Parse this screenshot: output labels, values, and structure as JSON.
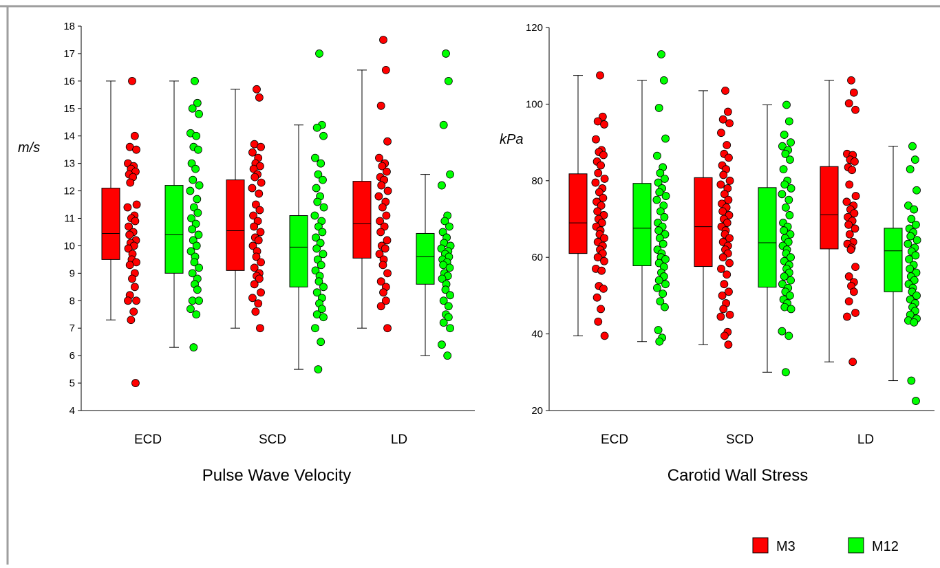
{
  "colors": {
    "m3": "#ff0000",
    "m12": "#00ff00",
    "frame": "#9e9e9e"
  },
  "legend": [
    {
      "key": "m3",
      "label": "M3",
      "color": "#ff0000"
    },
    {
      "key": "m12",
      "label": "M12",
      "color": "#00ff00"
    }
  ],
  "chart_data": [
    {
      "type": "box",
      "title": "",
      "xlabel": "Pulse Wave Velocity",
      "ylabel": "m/s",
      "ylim": [
        4,
        18
      ],
      "yticks": [
        "4",
        "5",
        "6",
        "7",
        "8",
        "9",
        "10",
        "11",
        "12",
        "13",
        "14",
        "15",
        "16",
        "17",
        "18"
      ],
      "categories": [
        "ECD",
        "SCD",
        "LD"
      ],
      "series": [
        {
          "name": "M3",
          "color": "#ff0000",
          "boxes": [
            {
              "whisker_low": 7.3,
              "q1": 9.5,
              "median": 10.45,
              "q3": 12.1,
              "whisker_high": 16.0
            },
            {
              "whisker_low": 7.0,
              "q1": 9.1,
              "median": 10.55,
              "q3": 12.4,
              "whisker_high": 15.7
            },
            {
              "whisker_low": 7.0,
              "q1": 9.55,
              "median": 10.8,
              "q3": 12.35,
              "whisker_high": 16.4
            }
          ],
          "points": [
            [
              16.0,
              14.0,
              13.6,
              13.5,
              13.0,
              12.9,
              12.8,
              12.7,
              12.6,
              12.5,
              12.3,
              11.5,
              11.4,
              11.1,
              11.0,
              10.9,
              10.7,
              10.5,
              10.4,
              10.2,
              10.1,
              10.0,
              9.9,
              9.7,
              9.5,
              9.4,
              9.3,
              9.0,
              8.8,
              8.5,
              8.2,
              8.0,
              8.0,
              7.6,
              7.3,
              5.0
            ],
            [
              15.7,
              15.4,
              13.7,
              13.6,
              13.4,
              13.2,
              13.0,
              12.9,
              12.8,
              12.6,
              12.5,
              12.3,
              12.1,
              11.9,
              11.5,
              11.3,
              11.1,
              10.9,
              10.7,
              10.5,
              10.3,
              10.2,
              10.0,
              9.8,
              9.6,
              9.4,
              9.2,
              9.0,
              8.9,
              8.8,
              8.6,
              8.3,
              8.1,
              7.9,
              7.6,
              7.0
            ],
            [
              17.5,
              16.4,
              15.1,
              13.8,
              13.2,
              13.0,
              12.9,
              12.7,
              12.5,
              12.4,
              12.2,
              12.0,
              11.8,
              11.6,
              11.4,
              11.1,
              10.9,
              10.7,
              10.5,
              10.2,
              10.0,
              9.9,
              9.7,
              9.5,
              9.3,
              9.0,
              8.7,
              8.5,
              8.3,
              8.0,
              7.8,
              7.0
            ]
          ]
        },
        {
          "name": "M12",
          "color": "#00ff00",
          "boxes": [
            {
              "whisker_low": 6.3,
              "q1": 9.0,
              "median": 10.4,
              "q3": 12.2,
              "whisker_high": 16.0
            },
            {
              "whisker_low": 5.5,
              "q1": 8.5,
              "median": 9.95,
              "q3": 11.1,
              "whisker_high": 14.4
            },
            {
              "whisker_low": 6.0,
              "q1": 8.6,
              "median": 9.6,
              "q3": 10.45,
              "whisker_high": 12.6
            }
          ],
          "points": [
            [
              16.0,
              15.2,
              15.0,
              14.8,
              14.1,
              14.0,
              13.6,
              13.5,
              13.0,
              12.8,
              12.4,
              12.2,
              12.0,
              11.7,
              11.4,
              11.2,
              11.0,
              10.8,
              10.6,
              10.4,
              10.2,
              10.0,
              9.8,
              9.6,
              9.4,
              9.2,
              9.0,
              8.8,
              8.6,
              8.4,
              8.0,
              8.0,
              7.7,
              7.5,
              6.3
            ],
            [
              17.0,
              14.4,
              14.3,
              14.0,
              13.2,
              13.0,
              12.6,
              12.4,
              12.1,
              11.8,
              11.6,
              11.4,
              11.1,
              10.9,
              10.7,
              10.5,
              10.3,
              10.1,
              9.9,
              9.7,
              9.5,
              9.3,
              9.1,
              8.9,
              8.7,
              8.5,
              8.3,
              8.1,
              7.9,
              7.7,
              7.5,
              7.4,
              7.0,
              6.5,
              5.5
            ],
            [
              17.0,
              16.0,
              14.4,
              12.6,
              12.2,
              11.1,
              10.9,
              10.7,
              10.5,
              10.3,
              10.1,
              10.0,
              9.9,
              9.8,
              9.7,
              9.6,
              9.5,
              9.4,
              9.3,
              9.2,
              9.0,
              8.9,
              8.8,
              8.6,
              8.4,
              8.2,
              8.0,
              7.8,
              7.5,
              7.4,
              7.2,
              7.0,
              6.4,
              6.0
            ]
          ]
        }
      ]
    },
    {
      "type": "box",
      "title": "",
      "xlabel": "Carotid Wall Stress",
      "ylabel": "kPa",
      "ylim": [
        20,
        120
      ],
      "yticks": [
        "20",
        "40",
        "60",
        "80",
        "100",
        "120"
      ],
      "categories": [
        "ECD",
        "SCD",
        "LD"
      ],
      "series": [
        {
          "name": "M3",
          "color": "#ff0000",
          "boxes": [
            {
              "whisker_low": 39.5,
              "q1": 61.0,
              "median": 69.0,
              "q3": 81.8,
              "whisker_high": 107.5
            },
            {
              "whisker_low": 37.2,
              "q1": 57.6,
              "median": 68.0,
              "q3": 80.8,
              "whisker_high": 103.5
            },
            {
              "whisker_low": 32.7,
              "q1": 62.2,
              "median": 71.1,
              "q3": 83.7,
              "whisker_high": 106.2
            }
          ],
          "points": [
            [
              107.5,
              96.7,
              95.5,
              94.7,
              90.8,
              88.0,
              87.5,
              86.7,
              85.0,
              84.0,
              82.0,
              80.5,
              79.5,
              78.0,
              77.0,
              75.5,
              74.5,
              73.5,
              72.0,
              71.0,
              70.0,
              69.0,
              68.0,
              67.0,
              66.0,
              65.0,
              64.0,
              63.0,
              62.0,
              61.0,
              60.0,
              59.0,
              57.0,
              56.5,
              52.5,
              51.8,
              49.5,
              46.5,
              43.2,
              39.5
            ],
            [
              103.5,
              98.0,
              96.0,
              95.0,
              92.5,
              89.3,
              87.0,
              86.0,
              84.0,
              83.0,
              81.5,
              80.0,
              79.0,
              78.0,
              76.5,
              75.0,
              74.0,
              73.0,
              72.0,
              71.0,
              70.0,
              69.0,
              68.0,
              67.0,
              66.0,
              65.0,
              64.0,
              63.0,
              62.0,
              61.0,
              60.0,
              58.5,
              57.0,
              55.5,
              53.0,
              51.0,
              50.0,
              48.0,
              46.5,
              45.0,
              44.5,
              40.5,
              39.5,
              37.2
            ],
            [
              106.2,
              103.0,
              100.2,
              98.5,
              87.0,
              86.7,
              85.5,
              85.0,
              83.5,
              82.8,
              79.0,
              76.0,
              74.5,
              73.5,
              72.5,
              71.5,
              70.5,
              69.5,
              68.5,
              67.5,
              66.0,
              64.0,
              63.5,
              62.5,
              62.0,
              57.5,
              55.0,
              53.5,
              52.5,
              51.0,
              48.5,
              45.5,
              44.5,
              32.7
            ]
          ]
        },
        {
          "name": "M12",
          "color": "#00ff00",
          "boxes": [
            {
              "whisker_low": 38.0,
              "q1": 57.8,
              "median": 67.6,
              "q3": 79.3,
              "whisker_high": 106.2
            },
            {
              "whisker_low": 30.0,
              "q1": 52.2,
              "median": 63.8,
              "q3": 78.2,
              "whisker_high": 99.8
            },
            {
              "whisker_low": 27.8,
              "q1": 51.0,
              "median": 61.7,
              "q3": 67.6,
              "whisker_high": 89.0
            }
          ],
          "points": [
            [
              113.0,
              106.2,
              99.0,
              91.0,
              86.5,
              83.5,
              82.0,
              80.5,
              79.5,
              78.0,
              77.0,
              76.0,
              75.0,
              73.5,
              72.0,
              70.5,
              69.0,
              68.0,
              67.0,
              66.0,
              65.0,
              63.5,
              62.0,
              61.0,
              60.0,
              59.5,
              58.5,
              57.5,
              56.0,
              55.0,
              54.0,
              53.0,
              52.0,
              50.5,
              48.5,
              47.0,
              41.0,
              39.0,
              38.0
            ],
            [
              99.8,
              95.5,
              92.0,
              90.0,
              89.0,
              88.0,
              87.0,
              85.5,
              83.0,
              80.0,
              79.0,
              78.0,
              76.5,
              75.0,
              73.0,
              71.0,
              69.0,
              68.0,
              67.0,
              66.0,
              65.0,
              64.0,
              63.0,
              62.0,
              61.0,
              60.0,
              59.0,
              58.0,
              57.0,
              56.0,
              55.0,
              54.0,
              53.0,
              52.0,
              51.0,
              50.0,
              49.0,
              48.0,
              47.0,
              46.5,
              40.7,
              39.5,
              30.0
            ],
            [
              89.0,
              85.5,
              83.0,
              77.5,
              73.5,
              72.5,
              70.0,
              68.5,
              67.5,
              66.5,
              65.5,
              64.5,
              63.5,
              62.5,
              61.5,
              60.5,
              59.5,
              58.0,
              57.0,
              56.0,
              55.0,
              54.0,
              53.0,
              52.0,
              51.0,
              50.0,
              49.0,
              48.0,
              47.0,
              46.0,
              45.0,
              44.0,
              43.5,
              43.0,
              27.8,
              22.5
            ]
          ]
        }
      ]
    }
  ]
}
